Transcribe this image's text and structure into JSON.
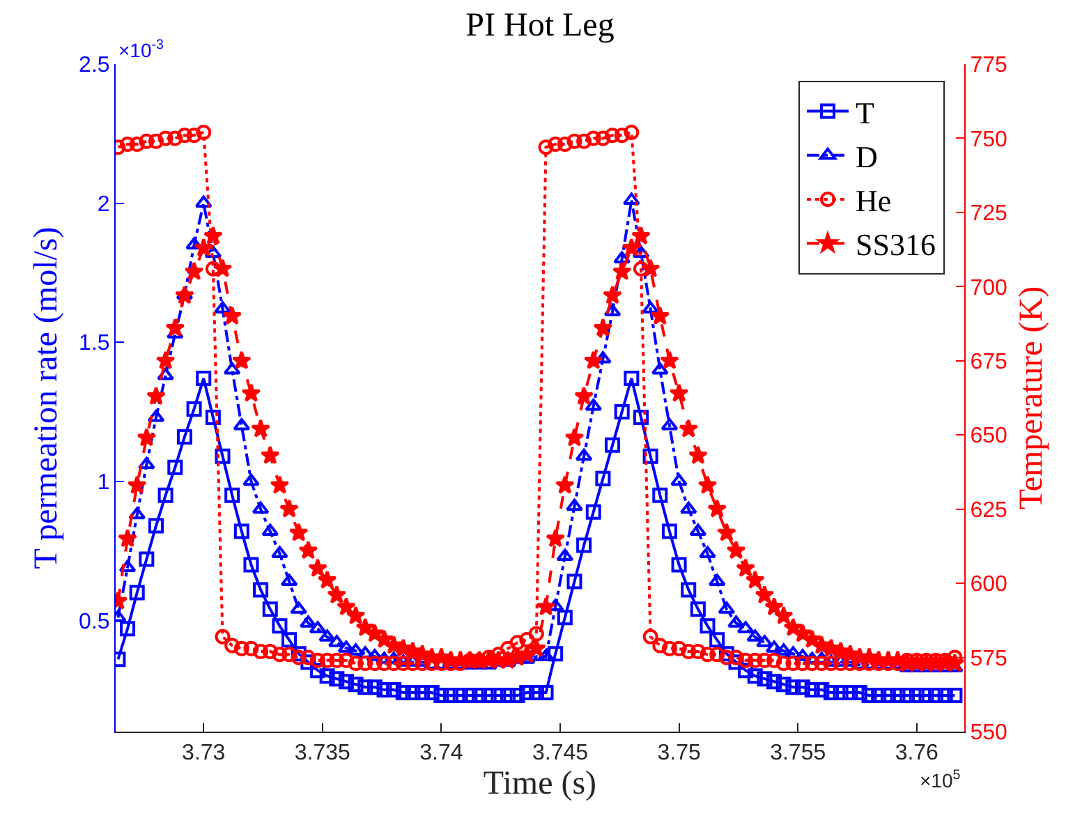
{
  "chart_data": {
    "type": "line",
    "title": "PI Hot Leg",
    "xlabel": "Time (s)",
    "ylabel": "T permeation rate (mol/s)",
    "y2label": "Temperature (K)",
    "annotations": [
      "×10$^{-3}$",
      "×10$^{5}$"
    ],
    "x": [
      3.7264,
      3.7268,
      3.7272,
      3.7276,
      3.728,
      3.7284,
      3.7288,
      3.7292,
      3.7296,
      3.73,
      3.7304,
      3.7308,
      3.7312,
      3.7316,
      3.732,
      3.7324,
      3.7328,
      3.7332,
      3.7336,
      3.734,
      3.7344,
      3.7348,
      3.7352,
      3.7356,
      3.736,
      3.7364,
      3.7368,
      3.7372,
      3.7376,
      3.738,
      3.7384,
      3.7388,
      3.7392,
      3.7396,
      3.74,
      3.7404,
      3.7408,
      3.7412,
      3.7416,
      3.742,
      3.7424,
      3.7428,
      3.7432,
      3.7436,
      3.744,
      3.7444,
      3.7448,
      3.7452,
      3.7456,
      3.746,
      3.7464,
      3.7468,
      3.7472,
      3.7476,
      3.748,
      3.7484,
      3.7488,
      3.7492,
      3.7496,
      3.75,
      3.7504,
      3.7508,
      3.7512,
      3.7516,
      3.752,
      3.7524,
      3.7528,
      3.7532,
      3.7536,
      3.754,
      3.7544,
      3.7548,
      3.7552,
      3.7556,
      3.756,
      3.7564,
      3.7568,
      3.7572,
      3.7576,
      3.758,
      3.7584,
      3.7588,
      3.7592,
      3.7596,
      3.76,
      3.7604,
      3.7608,
      3.7612,
      3.7616
    ],
    "series": [
      {
        "name": "T",
        "color": "#0000ff",
        "marker": "square",
        "line_style": "solid",
        "values": [
          0.36,
          0.47,
          0.6,
          0.72,
          0.84,
          0.95,
          1.05,
          1.16,
          1.26,
          1.37,
          1.23,
          1.09,
          0.95,
          0.82,
          0.7,
          0.61,
          0.54,
          0.48,
          0.43,
          0.38,
          0.35,
          0.32,
          0.3,
          0.29,
          0.28,
          0.27,
          0.26,
          0.26,
          0.25,
          0.25,
          0.24,
          0.24,
          0.24,
          0.24,
          0.23,
          0.23,
          0.23,
          0.23,
          0.23,
          0.23,
          0.23,
          0.23,
          0.23,
          0.24,
          0.24,
          0.24,
          0.38,
          0.51,
          0.64,
          0.77,
          0.89,
          1.01,
          1.13,
          1.25,
          1.37,
          1.23,
          1.09,
          0.95,
          0.82,
          0.7,
          0.61,
          0.54,
          0.48,
          0.43,
          0.38,
          0.35,
          0.32,
          0.3,
          0.29,
          0.28,
          0.27,
          0.26,
          0.26,
          0.25,
          0.25,
          0.24,
          0.24,
          0.24,
          0.24,
          0.23,
          0.23,
          0.23,
          0.23,
          0.23,
          0.23,
          0.23,
          0.23,
          0.23,
          0.23
        ]
      },
      {
        "name": "D",
        "color": "#0000ff",
        "marker": "triangle",
        "line_style": "dashdot",
        "values": [
          0.51,
          0.69,
          0.88,
          1.06,
          1.23,
          1.38,
          1.53,
          1.67,
          1.85,
          2,
          1.82,
          1.62,
          1.4,
          1.2,
          1,
          0.9,
          0.82,
          0.74,
          0.64,
          0.54,
          0.49,
          0.47,
          0.44,
          0.42,
          0.4,
          0.39,
          0.38,
          0.37,
          0.36,
          0.36,
          0.35,
          0.35,
          0.35,
          0.34,
          0.34,
          0.34,
          0.34,
          0.34,
          0.34,
          0.34,
          0.35,
          0.35,
          0.36,
          0.36,
          0.37,
          0.37,
          0.55,
          0.73,
          0.91,
          1.09,
          1.27,
          1.44,
          1.61,
          1.8,
          2.01,
          1.82,
          1.62,
          1.4,
          1.2,
          1,
          0.9,
          0.82,
          0.74,
          0.64,
          0.54,
          0.49,
          0.47,
          0.44,
          0.42,
          0.4,
          0.39,
          0.38,
          0.37,
          0.36,
          0.36,
          0.35,
          0.35,
          0.35,
          0.34,
          0.34,
          0.34,
          0.34,
          0.34,
          0.33,
          0.33,
          0.33,
          0.33,
          0.33,
          0.33
        ]
      },
      {
        "name": "He",
        "color": "#ff0000",
        "marker": "circle",
        "line_style": "dotted",
        "axis": "y2",
        "values": [
          747,
          748,
          748,
          749,
          749,
          750,
          750,
          751,
          751,
          752,
          706,
          582,
          579,
          578,
          578,
          577,
          577,
          576,
          576,
          575,
          575,
          574,
          574,
          574,
          574,
          573,
          573,
          573,
          573,
          573,
          573,
          573,
          573,
          573,
          573,
          573,
          573,
          574,
          574,
          575,
          576,
          578,
          580,
          581,
          583,
          747,
          748,
          748,
          749,
          749,
          750,
          750,
          751,
          751,
          752,
          706,
          582,
          579,
          578,
          578,
          577,
          577,
          576,
          576,
          575,
          575,
          574,
          574,
          574,
          574,
          573,
          573,
          573,
          573,
          573,
          573,
          573,
          573,
          573,
          573,
          573,
          573,
          573,
          574,
          574,
          574,
          574,
          574,
          575
        ]
      },
      {
        "name": "SS316",
        "color": "#ff0000",
        "marker": "star",
        "line_style": "dashed",
        "axis": "y2",
        "values": [
          594,
          615,
          633,
          649,
          663,
          675,
          686,
          697,
          705,
          713,
          717,
          706,
          690,
          675,
          664,
          652,
          643,
          633,
          625,
          617,
          611,
          605,
          601,
          596,
          592,
          589,
          585,
          583,
          581,
          579,
          578,
          577,
          576,
          575,
          575,
          574,
          574,
          574,
          574,
          574,
          574,
          574,
          575,
          576,
          578,
          592,
          615,
          633,
          649,
          663,
          675,
          686,
          697,
          705,
          713,
          717,
          706,
          690,
          675,
          664,
          652,
          643,
          633,
          625,
          617,
          611,
          605,
          601,
          596,
          592,
          589,
          585,
          583,
          581,
          579,
          578,
          577,
          576,
          575,
          575,
          574,
          574,
          574,
          573,
          573,
          573,
          573,
          573,
          573
        ]
      }
    ],
    "xlim": [
      3.7263,
      3.762
    ],
    "xticks": [
      {
        "value": 3.73,
        "label": "3.73"
      },
      {
        "value": 3.735,
        "label": "3.735"
      },
      {
        "value": 3.74,
        "label": "3.74"
      },
      {
        "value": 3.745,
        "label": "3.745"
      },
      {
        "value": 3.75,
        "label": "3.75"
      },
      {
        "value": 3.755,
        "label": "3.755"
      },
      {
        "value": 3.76,
        "label": "3.76"
      }
    ],
    "ylim": [
      0.1,
      2.5
    ],
    "yticks": [
      0.5,
      1,
      1.5,
      2,
      2.5
    ],
    "y2lim": [
      550,
      775
    ],
    "y2ticks": [
      550,
      575,
      600,
      625,
      650,
      675,
      700,
      725,
      750,
      775
    ],
    "grid": false,
    "legend": "top right"
  }
}
